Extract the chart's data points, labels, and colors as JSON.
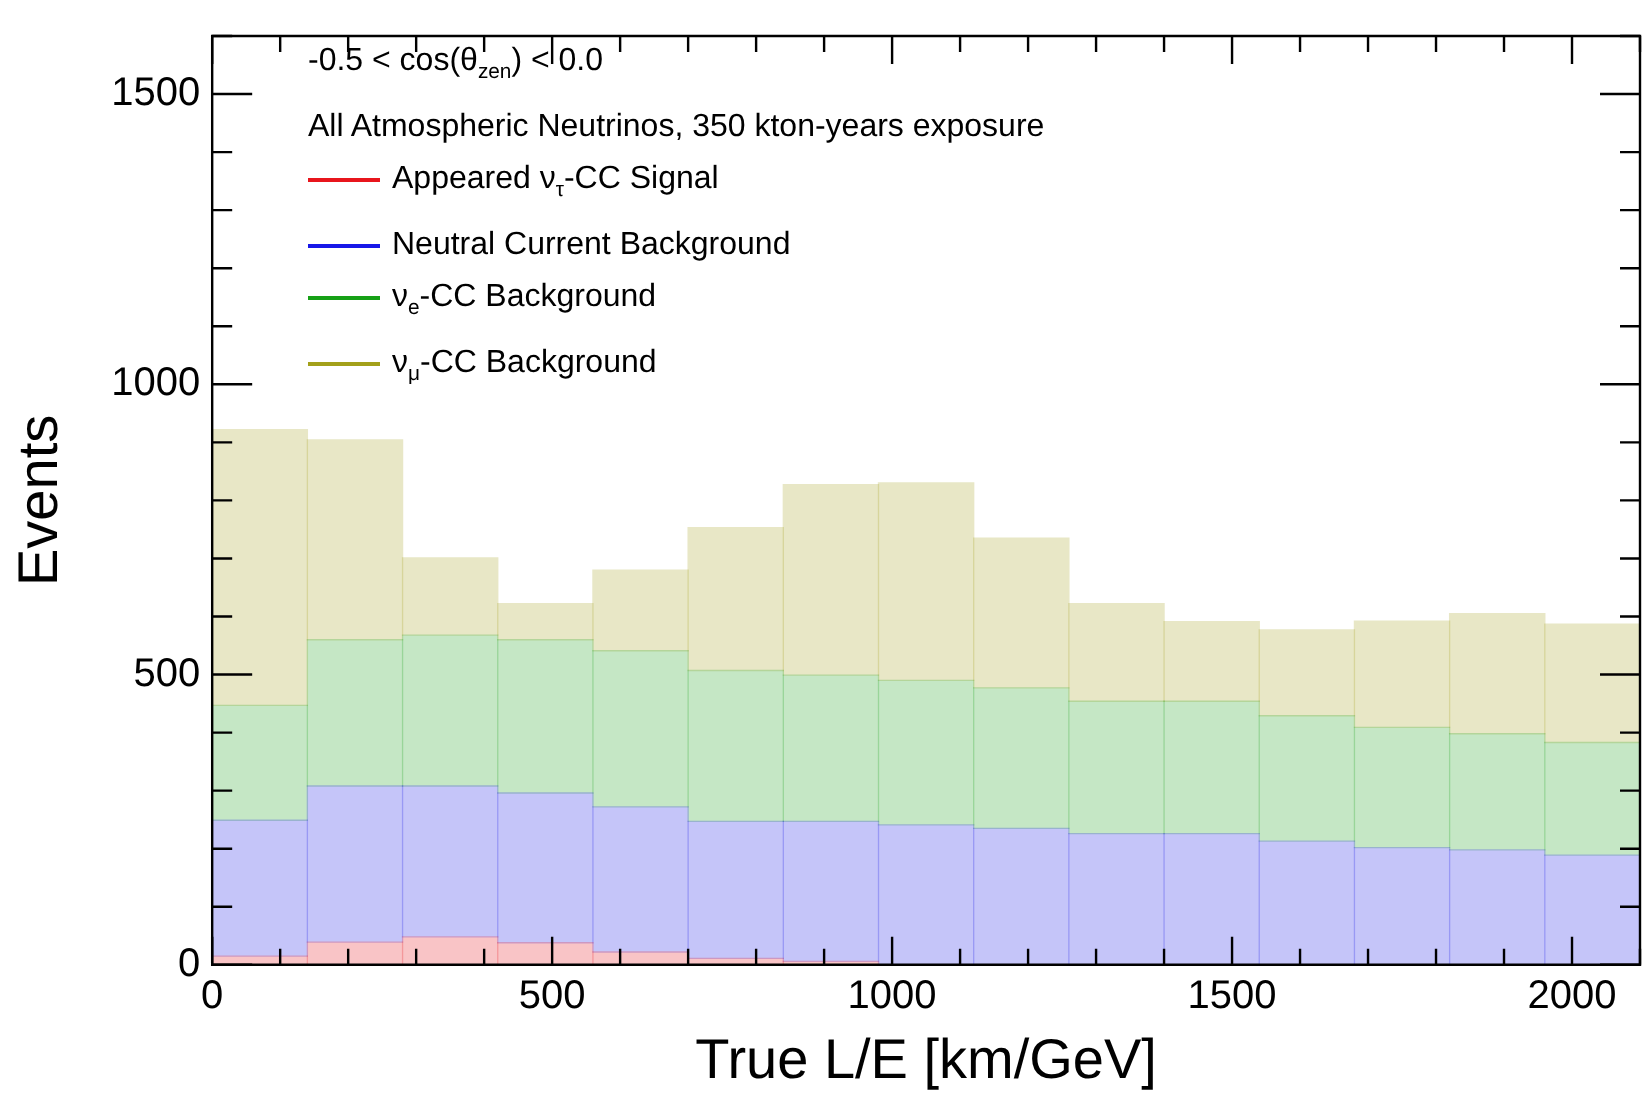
{
  "chart_data": {
    "type": "bar",
    "title": "-0.5 < cos(θ$_{zen}$) < 0.0",
    "subtitle": "All Atmospheric Neutrinos, 350 kton-years exposure",
    "xlabel": "True L/E [km/GeV]",
    "ylabel": "Events",
    "x": [
      70,
      210,
      350,
      490,
      630,
      770,
      910,
      1050,
      1190,
      1330,
      1470,
      1610,
      1750,
      1890,
      2030
    ],
    "stacked": true,
    "series": [
      {
        "name": "Appeared ν$_{τ}$-CC Signal",
        "color": "#e8151c",
        "values": [
          15,
          39,
          48,
          38,
          22,
          11,
          6,
          null,
          null,
          null,
          null,
          null,
          0,
          0,
          0
        ]
      },
      {
        "name": "Neutral Current Background",
        "color": "#1717e8",
        "values": [
          234,
          269,
          260,
          258,
          250,
          236,
          241,
          241,
          235,
          226,
          226,
          213,
          202,
          198,
          189
        ]
      },
      {
        "name": "ν$_{e}$-CC Background",
        "color": "#16a016",
        "values": [
          198,
          252,
          260,
          264,
          269,
          260,
          252,
          249,
          242,
          228,
          228,
          216,
          207,
          200,
          194
        ]
      },
      {
        "name": "ν$_{μ}$-CC Background",
        "color": "#a3a01a",
        "values": [
          475,
          344,
          133,
          62,
          139,
          246,
          328,
          340,
          258,
          168,
          137,
          148,
          183,
          207,
          204
        ]
      }
    ],
    "xlim": [
      0,
      2100
    ],
    "xticks": [
      0,
      500,
      1000,
      1500,
      2000
    ],
    "ylim": [
      0,
      1600
    ],
    "yticks": [
      0,
      500,
      1000,
      1500
    ],
    "legend": "top left"
  }
}
